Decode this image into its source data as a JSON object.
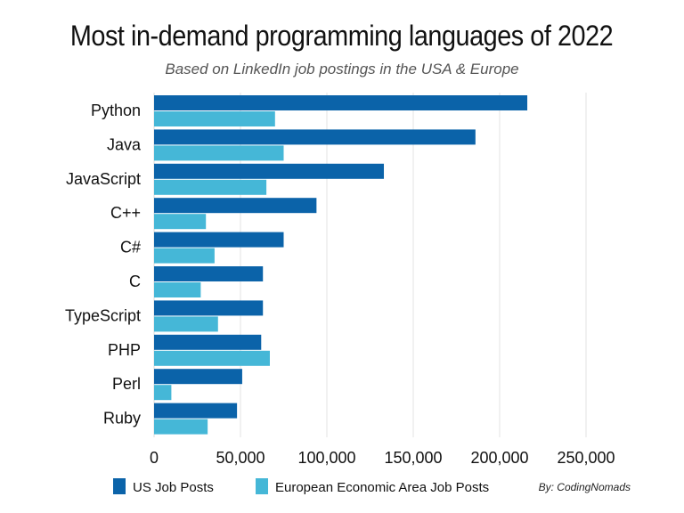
{
  "chart_data": {
    "type": "bar",
    "orientation": "horizontal",
    "title": "Most in-demand programming languages of 2022",
    "subtitle": "Based on LinkedIn job postings in the USA & Europe",
    "categories": [
      "Python",
      "Java",
      "JavaScript",
      "C++",
      "C#",
      "C",
      "TypeScript",
      "PHP",
      "Perl",
      "Ruby"
    ],
    "series": [
      {
        "name": "US Job Posts",
        "color": "#0b63a9",
        "values": [
          216000,
          186000,
          133000,
          94000,
          75000,
          63000,
          63000,
          62000,
          51000,
          48000
        ]
      },
      {
        "name": "European Economic Area Job Posts",
        "color": "#45b7d7",
        "values": [
          70000,
          75000,
          65000,
          30000,
          35000,
          27000,
          37000,
          67000,
          10000,
          31000
        ]
      }
    ],
    "xlim": [
      0,
      250000
    ],
    "xticks": [
      "0",
      "50,000",
      "100,000",
      "150,000",
      "200,000",
      "250,000"
    ],
    "xtick_values": [
      0,
      50000,
      100000,
      150000,
      200000,
      250000
    ],
    "grid": true,
    "legend_placement": "bottom-left",
    "credit": "By: CodingNomads"
  }
}
